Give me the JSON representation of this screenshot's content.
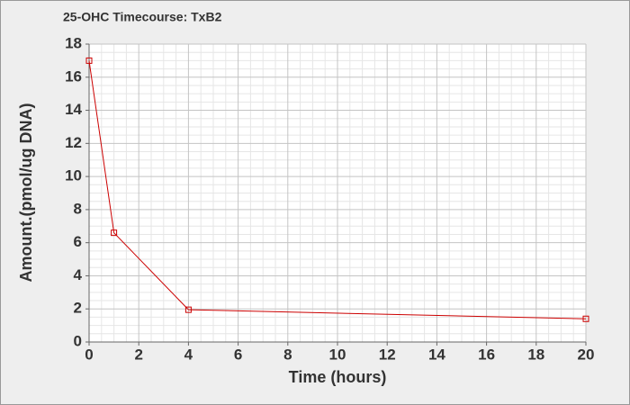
{
  "chart_data": {
    "type": "line",
    "title": "25-OHC Timecourse: TxB2",
    "x_label": "Time (hours)",
    "y_label": "Amount.(pmol/ug DNA)",
    "x": [
      0,
      1,
      4,
      20
    ],
    "series": [
      {
        "name": "TxB2",
        "color": "#cc0000",
        "values": [
          17,
          6.6,
          1.95,
          1.4
        ]
      }
    ],
    "xlim": [
      0,
      20
    ],
    "xticks": [
      0,
      2,
      4,
      6,
      8,
      10,
      12,
      14,
      16,
      18,
      20
    ],
    "ylim": [
      0,
      18
    ],
    "yticks": [
      0,
      2,
      4,
      6,
      8,
      10,
      12,
      14,
      16,
      18
    ],
    "grid": true,
    "legend": false
  }
}
